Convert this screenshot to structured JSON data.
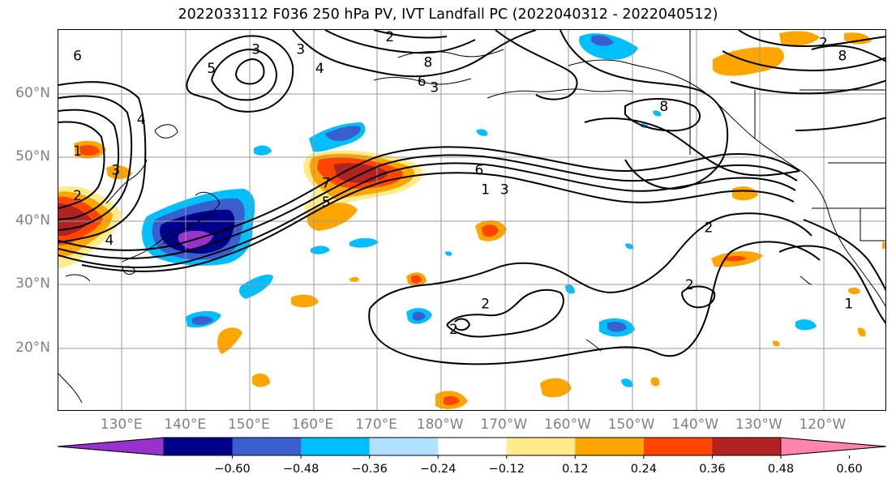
{
  "title": "2022033112 F036 250 hPa PV, IVT Landfall PC (2022040312 - 2022040512)",
  "lat_labels": [
    {
      "text": "60°N",
      "lat": 60
    },
    {
      "text": "50°N",
      "lat": 50
    },
    {
      "text": "40°N",
      "lat": 40
    },
    {
      "text": "30°N",
      "lat": 30
    },
    {
      "text": "20°N",
      "lat": 20
    }
  ],
  "lon_labels": [
    {
      "text": "130°E",
      "lon": 130
    },
    {
      "text": "140°E",
      "lon": 140
    },
    {
      "text": "150°E",
      "lon": 150
    },
    {
      "text": "160°E",
      "lon": 160
    },
    {
      "text": "170°E",
      "lon": 170
    },
    {
      "text": "180°W",
      "lon": 180
    },
    {
      "text": "170°W",
      "lon": 190
    },
    {
      "text": "160°W",
      "lon": 200
    },
    {
      "text": "150°W",
      "lon": 210
    },
    {
      "text": "140°W",
      "lon": 220
    },
    {
      "text": "130°W",
      "lon": 230
    },
    {
      "text": "120°W",
      "lon": 240
    }
  ],
  "map_extent": {
    "lon_min": 120,
    "lon_max": 250,
    "lat_min": 10,
    "lat_max": 70
  },
  "colorbar": {
    "colors": [
      "#9932cc",
      "#00008b",
      "#3a5fcd",
      "#00bfff",
      "#b0e2ff",
      "#ffffff",
      "#ffeb8a",
      "#ffa500",
      "#ff4500",
      "#b22222",
      "#ff85b0"
    ],
    "ticks": [
      "−0.60",
      "−0.48",
      "−0.36",
      "−0.24",
      "−0.12",
      "0.12",
      "0.24",
      "0.36",
      "0.48",
      "0.60"
    ],
    "extend": "both"
  },
  "contour_labels": [
    {
      "text": "6",
      "lon": 123,
      "lat": 66
    },
    {
      "text": "3",
      "lon": 151,
      "lat": 67
    },
    {
      "text": "5",
      "lon": 144,
      "lat": 64
    },
    {
      "text": "4",
      "lon": 161,
      "lat": 64
    },
    {
      "text": "3",
      "lon": 158,
      "lat": 67
    },
    {
      "text": "2",
      "lon": 172,
      "lat": 69
    },
    {
      "text": "8",
      "lon": 178,
      "lat": 65
    },
    {
      "text": "6",
      "lon": 177,
      "lat": 62
    },
    {
      "text": "3",
      "lon": 179,
      "lat": 61
    },
    {
      "text": "4",
      "lon": 133,
      "lat": 56
    },
    {
      "text": "1",
      "lon": 123,
      "lat": 51
    },
    {
      "text": "3",
      "lon": 129,
      "lat": 48
    },
    {
      "text": "7",
      "lon": 162,
      "lat": 46
    },
    {
      "text": "5",
      "lon": 162,
      "lat": 43
    },
    {
      "text": "2",
      "lon": 123,
      "lat": 44
    },
    {
      "text": "4",
      "lon": 128,
      "lat": 37
    },
    {
      "text": "6",
      "lon": 186,
      "lat": 48
    },
    {
      "text": "1",
      "lon": 187,
      "lat": 45
    },
    {
      "text": "3",
      "lon": 190,
      "lat": 45
    },
    {
      "text": "8",
      "lon": 215,
      "lat": 58
    },
    {
      "text": "2",
      "lon": 222,
      "lat": 39
    },
    {
      "text": "2",
      "lon": 219,
      "lat": 30
    },
    {
      "text": "2",
      "lon": 187,
      "lat": 27
    },
    {
      "text": "2",
      "lon": 182,
      "lat": 23
    },
    {
      "text": "1",
      "lon": 244,
      "lat": 27
    },
    {
      "text": "8",
      "lon": 243,
      "lat": 66
    },
    {
      "text": "2",
      "lon": 240,
      "lat": 68
    }
  ]
}
